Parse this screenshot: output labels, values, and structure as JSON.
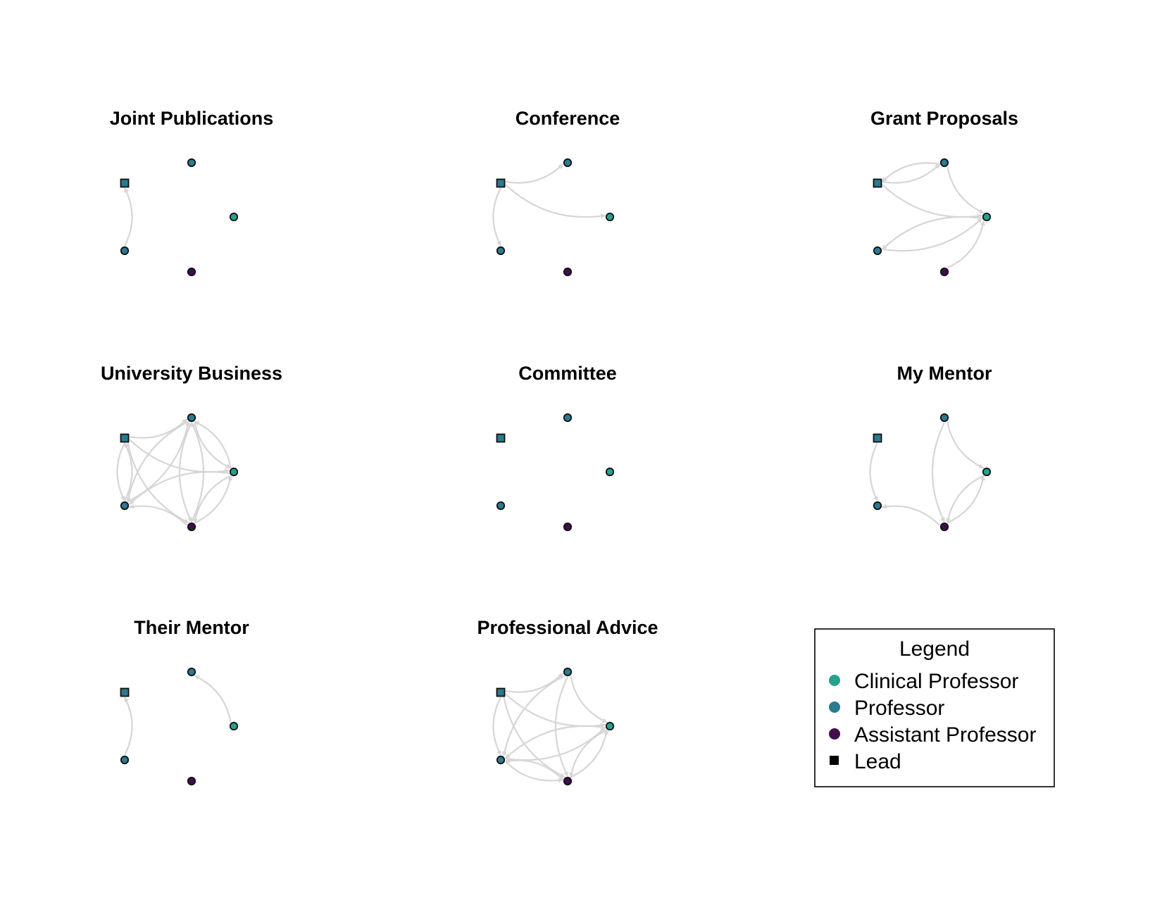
{
  "colors": {
    "Clinical Professor": "#25a18e",
    "Professor": "#2a7a90",
    "Assistant Professor": "#3f0f4d",
    "Lead": "#000000",
    "edge": "#d6d6d6"
  },
  "nodes": [
    {
      "id": "A",
      "role": "Professor",
      "lead": true
    },
    {
      "id": "B",
      "role": "Professor",
      "lead": false
    },
    {
      "id": "C",
      "role": "Clinical Professor",
      "lead": false
    },
    {
      "id": "D",
      "role": "Assistant Professor",
      "lead": false
    },
    {
      "id": "E",
      "role": "Professor",
      "lead": false
    }
  ],
  "panels": [
    {
      "title": "Joint Publications",
      "edges": [
        [
          "E",
          "A"
        ]
      ]
    },
    {
      "title": "Conference",
      "edges": [
        [
          "A",
          "B"
        ],
        [
          "A",
          "C"
        ],
        [
          "A",
          "E"
        ]
      ]
    },
    {
      "title": "Grant Proposals",
      "edges": [
        [
          "A",
          "B"
        ],
        [
          "B",
          "A"
        ],
        [
          "A",
          "C"
        ],
        [
          "B",
          "C"
        ],
        [
          "C",
          "E"
        ],
        [
          "E",
          "C"
        ],
        [
          "D",
          "C"
        ]
      ]
    },
    {
      "title": "University Business",
      "edges": [
        [
          "A",
          "B"
        ],
        [
          "A",
          "C"
        ],
        [
          "A",
          "D"
        ],
        [
          "A",
          "E"
        ],
        [
          "B",
          "C"
        ],
        [
          "B",
          "D"
        ],
        [
          "B",
          "E"
        ],
        [
          "C",
          "B"
        ],
        [
          "C",
          "D"
        ],
        [
          "C",
          "E"
        ],
        [
          "D",
          "B"
        ],
        [
          "D",
          "C"
        ],
        [
          "D",
          "E"
        ],
        [
          "E",
          "B"
        ],
        [
          "E",
          "A"
        ]
      ]
    },
    {
      "title": "Committee",
      "edges": []
    },
    {
      "title": "My Mentor",
      "edges": [
        [
          "A",
          "E"
        ],
        [
          "B",
          "C"
        ],
        [
          "B",
          "D"
        ],
        [
          "D",
          "C"
        ],
        [
          "C",
          "D"
        ],
        [
          "D",
          "E"
        ]
      ]
    },
    {
      "title": "Their Mentor",
      "edges": [
        [
          "E",
          "A"
        ],
        [
          "C",
          "B"
        ]
      ]
    },
    {
      "title": "Professional Advice",
      "edges": [
        [
          "A",
          "B"
        ],
        [
          "A",
          "C"
        ],
        [
          "A",
          "D"
        ],
        [
          "A",
          "E"
        ],
        [
          "B",
          "C"
        ],
        [
          "B",
          "D"
        ],
        [
          "B",
          "E"
        ],
        [
          "C",
          "E"
        ],
        [
          "C",
          "D"
        ],
        [
          "D",
          "E"
        ],
        [
          "E",
          "D"
        ],
        [
          "E",
          "C"
        ],
        [
          "D",
          "C"
        ]
      ]
    }
  ],
  "legend": {
    "title": "Legend",
    "items": [
      {
        "label": "Clinical Professor",
        "shape": "circle",
        "color_key": "Clinical Professor"
      },
      {
        "label": "Professor",
        "shape": "circle",
        "color_key": "Professor"
      },
      {
        "label": "Assistant Professor",
        "shape": "circle",
        "color_key": "Assistant Professor"
      },
      {
        "label": "Lead",
        "shape": "square",
        "color_key": "Lead"
      }
    ]
  }
}
